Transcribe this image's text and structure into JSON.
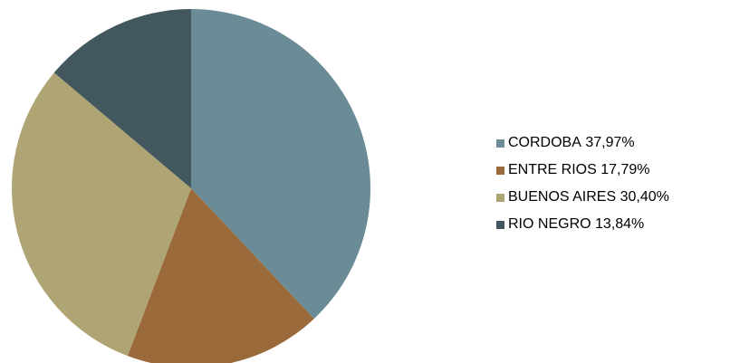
{
  "chart_data": {
    "type": "pie",
    "title": "",
    "start": "12 o'clock",
    "direction": "clockwise",
    "legend_position": "right",
    "slices": [
      {
        "label": "CORDOBA",
        "value": 37.97,
        "display": "37,97%",
        "color": "#6b8b96"
      },
      {
        "label": "ENTRE RIOS",
        "value": 17.79,
        "display": "17,79%",
        "color": "#9b6a3b"
      },
      {
        "label": "BUENOS AIRES",
        "value": 30.4,
        "display": "30,40%",
        "color": "#afa473"
      },
      {
        "label": "RIO NEGRO",
        "value": 13.84,
        "display": "13,84%",
        "color": "#43575f"
      }
    ]
  }
}
